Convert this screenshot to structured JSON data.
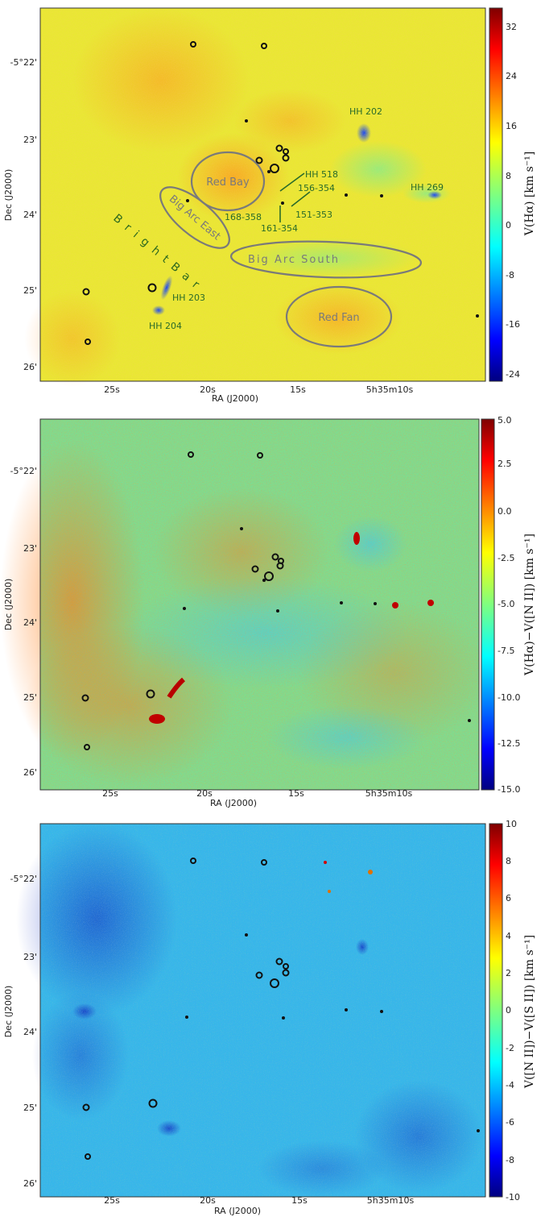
{
  "colors": {
    "jet": [
      "#00007f",
      "#0000ff",
      "#007fff",
      "#00ffff",
      "#7fff7f",
      "#ffff00",
      "#ff7f00",
      "#ff0000",
      "#7f0000"
    ],
    "region_outline": "#7a7a7a",
    "object_label": "#2a6b2a",
    "star_marker": "#111111"
  },
  "chart_data": [
    {
      "type": "heatmap",
      "title": "",
      "xlabel": "RA (J2000)",
      "ylabel": "Dec (J2000)",
      "x_ticks": [
        "25s",
        "20s",
        "15s",
        "5h35m10s"
      ],
      "y_ticks": [
        "-5°22'",
        "23'",
        "24'",
        "25'",
        "26'"
      ],
      "colorbar": {
        "label": "V(Hα) [km s⁻¹]",
        "range": [
          -26,
          36
        ],
        "ticks": [
          "32",
          "24",
          "16",
          "8",
          "0",
          "-8",
          "-16",
          "-24"
        ]
      },
      "regions": [
        "Red Bay",
        "Big Arc East",
        "Big Arc South",
        "Red Fan"
      ],
      "bar_label": "B r i g h t   B a r",
      "objects": [
        "HH 202",
        "HH 518",
        "156-354",
        "HH 269",
        "168-358",
        "151-353",
        "161-354",
        "HH 203",
        "HH 204"
      ]
    },
    {
      "type": "heatmap",
      "title": "",
      "xlabel": "RA (J2000)",
      "ylabel": "Dec (J2000)",
      "x_ticks": [
        "25s",
        "20s",
        "15s",
        "5h35m10s"
      ],
      "y_ticks": [
        "-5°22'",
        "23'",
        "24'",
        "25'",
        "26'"
      ],
      "colorbar": {
        "label": "V(Hα)−V([N II]) [km s⁻¹]",
        "range": [
          -15,
          5
        ],
        "ticks": [
          "5.0",
          "2.5",
          "0.0",
          "-2.5",
          "-5.0",
          "-7.5",
          "-10.0",
          "-12.5",
          "-15.0"
        ]
      }
    },
    {
      "type": "heatmap",
      "title": "",
      "xlabel": "RA (J2000)",
      "ylabel": "Dec (J2000)",
      "x_ticks": [
        "25s",
        "20s",
        "15s",
        "5h35m10s"
      ],
      "y_ticks": [
        "-5°22'",
        "23'",
        "24'",
        "25'",
        "26'"
      ],
      "colorbar": {
        "label": "V([N II])−V([S II]) [km s⁻¹]",
        "range": [
          -10,
          10
        ],
        "ticks": [
          "10",
          "8",
          "6",
          "4",
          "2",
          "0",
          "-2",
          "-4",
          "-6",
          "-8",
          "-10"
        ]
      }
    }
  ]
}
